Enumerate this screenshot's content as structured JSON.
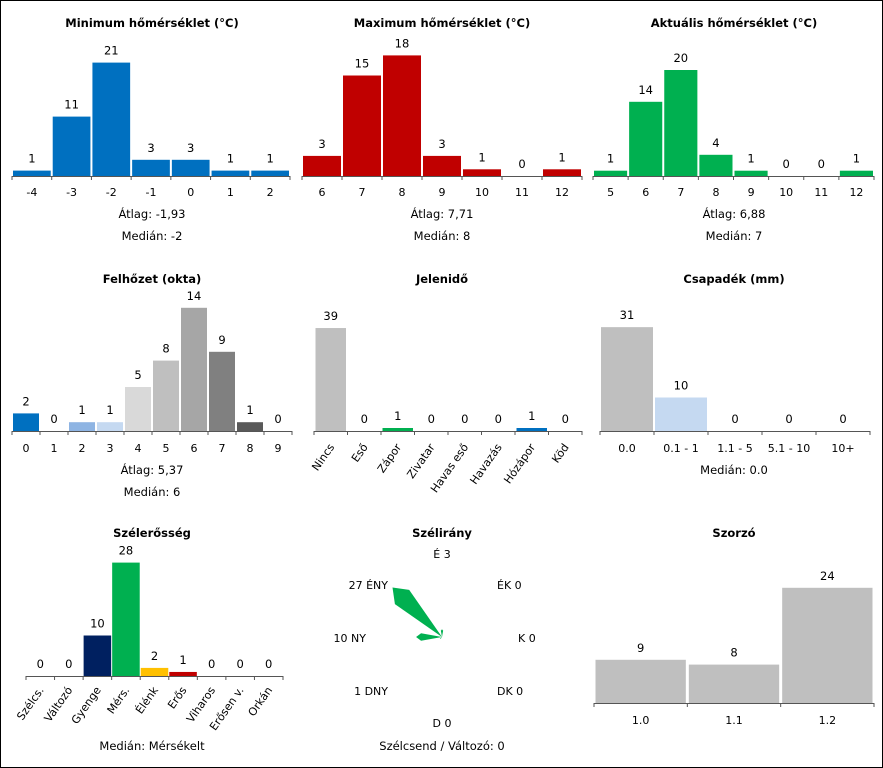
{
  "chart_data": [
    {
      "id": "min_temp",
      "type": "bar",
      "title": "Minimum hőmérséklet (°C)",
      "categories": [
        "-4",
        "-3",
        "-2",
        "-1",
        "0",
        "1",
        "2"
      ],
      "values": [
        1,
        11,
        21,
        3,
        3,
        1,
        1
      ],
      "colors": [
        "#0070c0",
        "#0070c0",
        "#0070c0",
        "#0070c0",
        "#0070c0",
        "#0070c0",
        "#0070c0"
      ],
      "stats": [
        {
          "label": "Átlag:",
          "value": "-1,93"
        },
        {
          "label": "Medián:",
          "value": "-2"
        }
      ]
    },
    {
      "id": "max_temp",
      "type": "bar",
      "title": "Maximum hőmérséklet (°C)",
      "categories": [
        "6",
        "7",
        "8",
        "9",
        "10",
        "11",
        "12"
      ],
      "values": [
        3,
        15,
        18,
        3,
        1,
        0,
        1
      ],
      "colors": [
        "#c00000",
        "#c00000",
        "#c00000",
        "#c00000",
        "#c00000",
        "#c00000",
        "#c00000"
      ],
      "stats": [
        {
          "label": "Átlag:",
          "value": "7,71"
        },
        {
          "label": "Medián:",
          "value": "8"
        }
      ]
    },
    {
      "id": "cur_temp",
      "type": "bar",
      "title": "Aktuális hőmérséklet (°C)",
      "categories": [
        "5",
        "6",
        "7",
        "8",
        "9",
        "10",
        "11",
        "12"
      ],
      "values": [
        1,
        14,
        20,
        4,
        1,
        0,
        0,
        1
      ],
      "colors": [
        "#00b050",
        "#00b050",
        "#00b050",
        "#00b050",
        "#00b050",
        "#00b050",
        "#00b050",
        "#00b050"
      ],
      "stats": [
        {
          "label": "Átlag:",
          "value": "6,88"
        },
        {
          "label": "Medián:",
          "value": "7"
        }
      ]
    },
    {
      "id": "cloud",
      "type": "bar",
      "title": "Felhőzet (okta)",
      "categories": [
        "0",
        "1",
        "2",
        "3",
        "4",
        "5",
        "6",
        "7",
        "8",
        "9"
      ],
      "values": [
        2,
        0,
        1,
        1,
        5,
        8,
        14,
        9,
        1,
        0
      ],
      "colors": [
        "#0070c0",
        "#0070c0",
        "#8eb4e3",
        "#c5d9f1",
        "#d9d9d9",
        "#bfbfbf",
        "#a6a6a6",
        "#808080",
        "#595959",
        "#404040"
      ],
      "stats": [
        {
          "label": "Átlag:",
          "value": "5,37"
        },
        {
          "label": "Medián:",
          "value": "6"
        }
      ]
    },
    {
      "id": "weather",
      "type": "bar",
      "title": "Jelenidő",
      "categories": [
        "Nincs",
        "Eső",
        "Zápor",
        "Zivatar",
        "Havas eső",
        "Havazás",
        "Hózápor",
        "Köd"
      ],
      "values": [
        39,
        0,
        1,
        0,
        0,
        0,
        1,
        0
      ],
      "colors": [
        "#bfbfbf",
        "#0070c0",
        "#00b050",
        "#c00000",
        "#7f7f7f",
        "#0070c0",
        "#0070c0",
        "#7f7f7f"
      ],
      "stats": []
    },
    {
      "id": "precip",
      "type": "bar",
      "title": "Csapadék (mm)",
      "categories": [
        "0.0",
        "0.1 - 1",
        "1.1 - 5",
        "5.1 - 10",
        "10+"
      ],
      "values": [
        31,
        10,
        0,
        0,
        0
      ],
      "colors": [
        "#bfbfbf",
        "#c5d9f1",
        "#8eb4e3",
        "#0070c0",
        "#002060"
      ],
      "stats": [
        {
          "label": "Medián:",
          "value": "0.0"
        }
      ]
    },
    {
      "id": "wind_strength",
      "type": "bar",
      "title": "Szélerősség",
      "categories": [
        "Szélcs.",
        "Változó",
        "Gyenge",
        "Mérs.",
        "Élénk",
        "Erős",
        "Viharos",
        "Erősen v.",
        "Orkán"
      ],
      "values": [
        0,
        0,
        10,
        28,
        2,
        1,
        0,
        0,
        0
      ],
      "colors": [
        "#7f7f7f",
        "#7f7f7f",
        "#002060",
        "#00b050",
        "#ffc000",
        "#c00000",
        "#7030a0",
        "#7030a0",
        "#000000"
      ],
      "stats": [
        {
          "label": "Medián:",
          "value": "Mérsékelt"
        }
      ]
    },
    {
      "id": "wind_dir",
      "type": "rose",
      "title": "Szélirány",
      "directions": [
        "É",
        "ÉK",
        "K",
        "DK",
        "D",
        "DNY",
        "NY",
        "ÉNY"
      ],
      "counts": [
        3,
        0,
        0,
        0,
        0,
        1,
        10,
        27
      ],
      "color": "#00b050",
      "footer": "Szélcsend / Változó: 0"
    },
    {
      "id": "multiplier",
      "type": "bar",
      "title": "Szorzó",
      "categories": [
        "1.0",
        "1.1",
        "1.2"
      ],
      "values": [
        9,
        8,
        24
      ],
      "colors": [
        "#bfbfbf",
        "#bfbfbf",
        "#bfbfbf"
      ],
      "stats": []
    }
  ]
}
